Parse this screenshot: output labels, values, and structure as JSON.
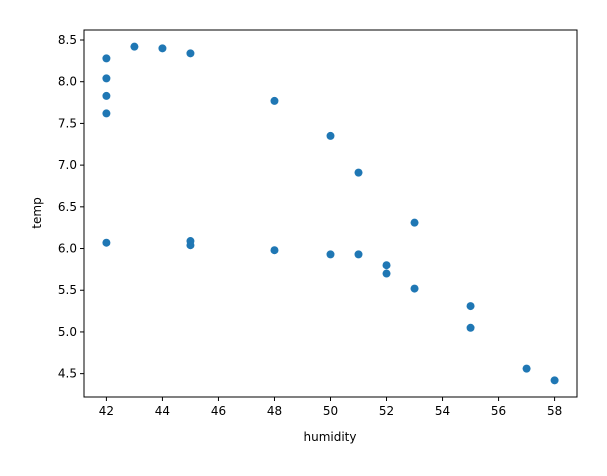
{
  "chart_data": {
    "type": "scatter",
    "title": "",
    "xlabel": "humidity",
    "ylabel": "temp",
    "xlim": [
      41.2,
      58.8
    ],
    "ylim": [
      4.22,
      8.62
    ],
    "xticks": [
      42,
      44,
      46,
      48,
      50,
      52,
      54,
      56,
      58
    ],
    "yticks": [
      4.5,
      5.0,
      5.5,
      6.0,
      6.5,
      7.0,
      7.5,
      8.0,
      8.5
    ],
    "xtick_labels": [
      "42",
      "44",
      "46",
      "48",
      "50",
      "52",
      "54",
      "56",
      "58"
    ],
    "ytick_labels": [
      "4.5",
      "5.0",
      "5.5",
      "6.0",
      "6.5",
      "7.0",
      "7.5",
      "8.0",
      "8.5"
    ],
    "grid": false,
    "marker_color": "#1f77b4",
    "points": [
      {
        "x": 42,
        "y": 8.28
      },
      {
        "x": 42,
        "y": 8.04
      },
      {
        "x": 42,
        "y": 7.83
      },
      {
        "x": 42,
        "y": 7.62
      },
      {
        "x": 42,
        "y": 6.07
      },
      {
        "x": 43,
        "y": 8.42
      },
      {
        "x": 44,
        "y": 8.4
      },
      {
        "x": 45,
        "y": 8.34
      },
      {
        "x": 45,
        "y": 6.09
      },
      {
        "x": 45,
        "y": 6.04
      },
      {
        "x": 48,
        "y": 7.77
      },
      {
        "x": 48,
        "y": 5.98
      },
      {
        "x": 50,
        "y": 7.35
      },
      {
        "x": 50,
        "y": 5.93
      },
      {
        "x": 51,
        "y": 6.91
      },
      {
        "x": 51,
        "y": 5.93
      },
      {
        "x": 52,
        "y": 5.8
      },
      {
        "x": 52,
        "y": 5.7
      },
      {
        "x": 53,
        "y": 6.31
      },
      {
        "x": 53,
        "y": 5.52
      },
      {
        "x": 55,
        "y": 5.31
      },
      {
        "x": 55,
        "y": 5.05
      },
      {
        "x": 57,
        "y": 4.56
      },
      {
        "x": 58,
        "y": 4.42
      }
    ]
  }
}
